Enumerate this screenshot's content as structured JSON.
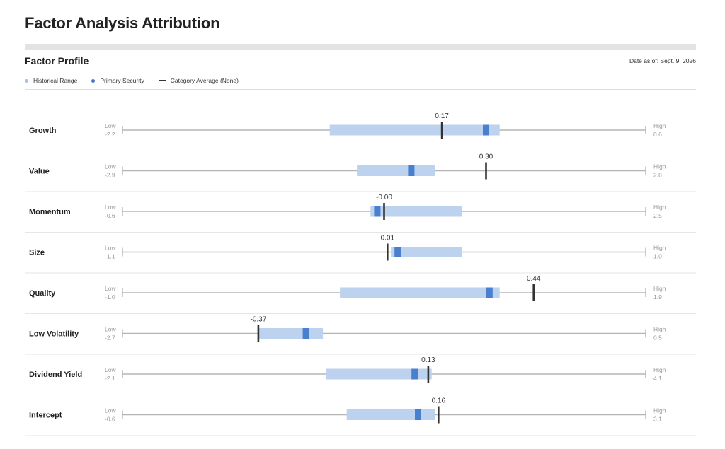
{
  "page": {
    "title": "Factor Analysis Attribution",
    "section_title": "Factor Profile",
    "date_as_of": "Date as of: Sept. 9, 2026"
  },
  "legend": {
    "historical_range": "Historical Range",
    "primary_security": "Primary Security",
    "category_average": "Category Average  (None)"
  },
  "colors": {
    "range": "#bcd2ee",
    "security": "#4a7fd0",
    "average": "#333333",
    "track": "#b5b5b5",
    "row_divider": "#e6e6e6"
  },
  "chart_data": {
    "type": "range-bar",
    "low_label": "Low",
    "high_label": "High",
    "factors": [
      {
        "name": "Growth",
        "low": -2.2,
        "high": 0.6,
        "low_text": "-2.2",
        "high_text": "0.6",
        "range": [
          -0.16,
          0.34
        ],
        "security": 0.3,
        "average": 0.17,
        "value_label": "0.17"
      },
      {
        "name": "Value",
        "low": -2.9,
        "high": 2.8,
        "low_text": "-2.9",
        "high_text": "2.8",
        "range": [
          -0.08,
          0.15
        ],
        "security": 0.08,
        "average": 0.3,
        "value_label": "0.30"
      },
      {
        "name": "Momentum",
        "low": -0.6,
        "high": 2.5,
        "low_text": "-0.6",
        "high_text": "2.5",
        "range": [
          -0.04,
          0.23
        ],
        "security": -0.02,
        "average": 0.0,
        "value_label": "-0.00"
      },
      {
        "name": "Size",
        "low": -1.1,
        "high": 1.0,
        "low_text": "-1.1",
        "high_text": "1.0",
        "range": [
          0.02,
          0.23
        ],
        "security": 0.04,
        "average": 0.01,
        "value_label": "0.01"
      },
      {
        "name": "Quality",
        "low": -1.0,
        "high": 1.9,
        "low_text": "-1.0",
        "high_text": "1.9",
        "range": [
          -0.13,
          0.34
        ],
        "security": 0.31,
        "average": 0.44,
        "value_label": "0.44"
      },
      {
        "name": "Low Volatility",
        "low": -2.7,
        "high": 0.5,
        "low_text": "-2.7",
        "high_text": "0.5",
        "range": [
          -0.37,
          -0.18
        ],
        "security": -0.23,
        "average": -0.37,
        "value_label": "-0.37"
      },
      {
        "name": "Dividend Yield",
        "low": -2.1,
        "high": 4.1,
        "low_text": "-2.1",
        "high_text": "4.1",
        "range": [
          -0.17,
          0.14
        ],
        "security": 0.09,
        "average": 0.13,
        "value_label": "0.13"
      },
      {
        "name": "Intercept",
        "low": -0.6,
        "high": 3.1,
        "low_text": "-0.6",
        "high_text": "3.1",
        "range": [
          -0.11,
          0.15
        ],
        "security": 0.1,
        "average": 0.16,
        "value_label": "0.16"
      }
    ]
  }
}
